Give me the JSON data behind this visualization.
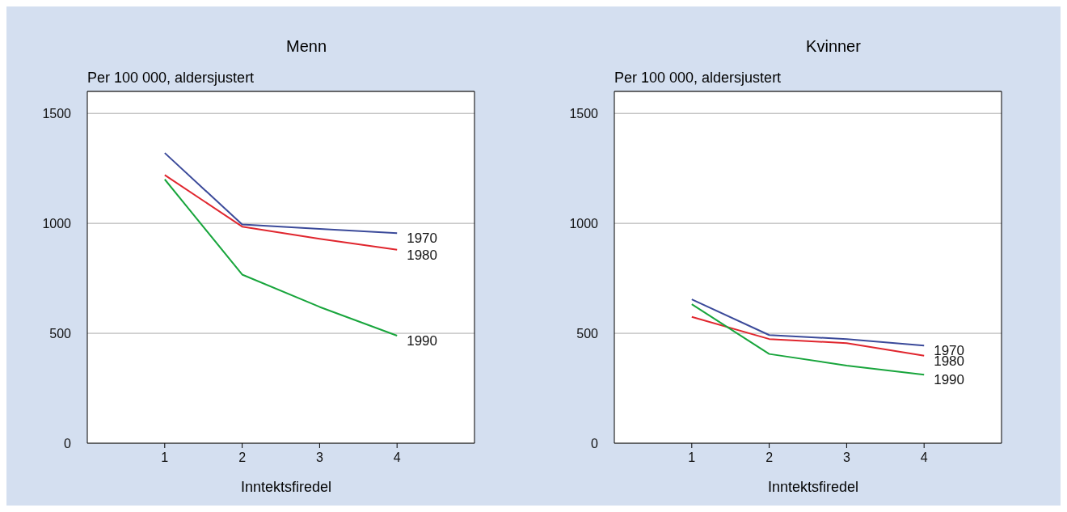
{
  "chart_data": [
    {
      "type": "line",
      "title": "Menn",
      "ylabel": "Per 100 000, aldersjustert",
      "xlabel": "Inntektsfiredel",
      "x": [
        1,
        2,
        3,
        4
      ],
      "xlim": [
        0,
        5
      ],
      "xticks": [
        1,
        2,
        3,
        4
      ],
      "ylim": [
        0,
        1600
      ],
      "yticks": [
        0,
        500,
        1000,
        1500
      ],
      "grid": "y",
      "legend": false,
      "series": [
        {
          "name": "1970",
          "color": "#3b4a9a",
          "values": [
            1320,
            995,
            975,
            955
          ]
        },
        {
          "name": "1980",
          "color": "#e0262e",
          "values": [
            1220,
            985,
            930,
            880
          ]
        },
        {
          "name": "1990",
          "color": "#18a53c",
          "values": [
            1200,
            767,
            620,
            489
          ]
        }
      ]
    },
    {
      "type": "line",
      "title": "Kvinner",
      "ylabel": "Per 100 000, aldersjustert",
      "xlabel": "Inntektsfiredel",
      "x": [
        1,
        2,
        3,
        4
      ],
      "xlim": [
        0,
        5
      ],
      "xticks": [
        1,
        2,
        3,
        4
      ],
      "ylim": [
        0,
        1600
      ],
      "yticks": [
        0,
        500,
        1000,
        1500
      ],
      "grid": "y",
      "legend": false,
      "series": [
        {
          "name": "1970",
          "color": "#3b4a9a",
          "values": [
            654,
            492,
            474,
            444
          ]
        },
        {
          "name": "1980",
          "color": "#e0262e",
          "values": [
            575,
            474,
            455,
            398
          ]
        },
        {
          "name": "1990",
          "color": "#18a53c",
          "values": [
            632,
            406,
            353,
            312
          ]
        }
      ]
    }
  ]
}
